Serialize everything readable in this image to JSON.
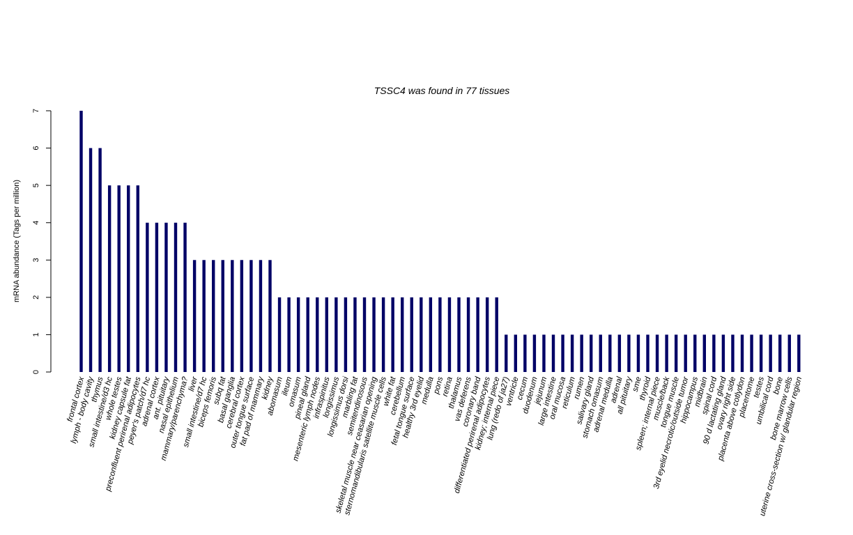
{
  "chart_data": {
    "type": "bar",
    "title": "TSSC4  was found in  77  tissues",
    "ylabel": "mRNA abundance (Tags per million)",
    "xlabel": "",
    "ylim": [
      0,
      7
    ],
    "yticks": [
      0,
      1,
      2,
      3,
      4,
      5,
      6,
      7
    ],
    "bar_color": "#000066",
    "categories": [
      "frontal cortex",
      "lymph - body cavity",
      "thymus",
      "small intestine/d3 hc",
      "whole testes",
      "kidney capsule fat",
      "preconfluent perirenal adipocytes",
      "peyer's patch/d7 hc",
      "adrenal cortex",
      "ant. pituitary",
      "nasal epithelium",
      "mammary/parenchyma?",
      "liver",
      "small intestine/d7 hc",
      "biceps femoris",
      "subq fat",
      "basal ganglia",
      "cerebral cortex",
      "outer tongue surface",
      "fat pad of mammary",
      "kidney",
      "abomasum",
      "ileum",
      "omasum",
      "pineal gland",
      "mesenteric lymph nodes",
      "infraspinitus",
      "longissimus",
      "longissimus dorsi",
      "marbling fat",
      "semitendinosous",
      "skeletal muscle near ceasarian opening",
      "sternomandibularis satellite muscle cells",
      "white fat",
      "cerebellum",
      "fetal tongue surface",
      "healthy 3rd eyelid",
      "medulla",
      "pons",
      "retina",
      "thalamus",
      "vas deferens",
      "coronary band",
      "differentiated perirenal adipocytes",
      "kidney; internal piece",
      "lung (redo of ja27)",
      "ventricle",
      "cecum",
      "duodenum",
      "jejunum",
      "large intestine",
      "oral mucosa",
      "reticulum",
      "rumen",
      "salivary gland",
      "stomach omasum",
      "adrenal medulla",
      "adrenal",
      "all pituitary",
      "sme",
      "thyroid",
      "spleen; internal piece",
      "muscle/back",
      "tongue muscle",
      "3rd eyelid necrotic/outside tumor",
      "hippocampus",
      "midbrain",
      "spinal cord",
      "90 d lactating gland",
      "ovary right side",
      "placenta above cotlydon",
      "placentome",
      "testes",
      "umbilical cord",
      "bone",
      "bone marrow cells",
      "uterine cross-section w/ glandular region"
    ],
    "values": [
      7,
      6,
      6,
      5,
      5,
      5,
      5,
      4,
      4,
      4,
      4,
      4,
      3,
      3,
      3,
      3,
      3,
      3,
      3,
      3,
      3,
      2,
      2,
      2,
      2,
      2,
      2,
      2,
      2,
      2,
      2,
      2,
      2,
      2,
      2,
      2,
      2,
      2,
      2,
      2,
      2,
      2,
      2,
      2,
      2,
      1,
      1,
      1,
      1,
      1,
      1,
      1,
      1,
      1,
      1,
      1,
      1,
      1,
      1,
      1,
      1,
      1,
      1,
      1,
      1,
      1,
      1,
      1,
      1,
      1,
      1,
      1,
      1,
      1,
      1,
      1,
      1
    ]
  }
}
